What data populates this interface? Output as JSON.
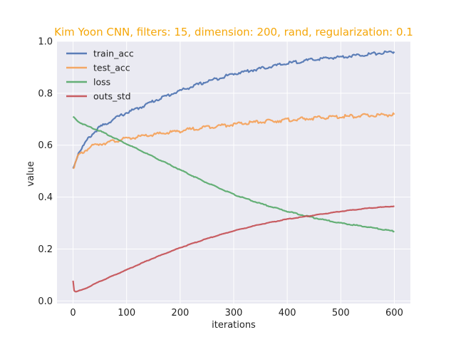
{
  "chart_data": {
    "type": "line",
    "title": "Kim Yoon CNN, filters: 15, dimension: 200, rand, regularization: 0.1",
    "title_color": "#F5A70A",
    "xlabel": "iterations",
    "ylabel": "value",
    "xlim": [
      -30,
      630
    ],
    "ylim": [
      -0.01,
      1.0
    ],
    "xticks": [
      0,
      100,
      200,
      300,
      400,
      500,
      600
    ],
    "yticks": [
      0.0,
      0.2,
      0.4,
      0.6,
      0.8,
      1.0
    ],
    "ytick_labels": [
      "0.0",
      "0.2",
      "0.4",
      "0.6",
      "0.8",
      "1.0"
    ],
    "grid": true,
    "background": "#EAEAF2",
    "legend_position": "top-left",
    "series": [
      {
        "name": "train_acc",
        "color": "#4C72B0",
        "x": [
          0,
          10,
          20,
          30,
          40,
          50,
          60,
          80,
          100,
          125,
          150,
          175,
          200,
          250,
          300,
          350,
          400,
          450,
          500,
          550,
          600
        ],
        "y": [
          0.51,
          0.57,
          0.6,
          0.63,
          0.65,
          0.67,
          0.68,
          0.705,
          0.725,
          0.745,
          0.77,
          0.79,
          0.81,
          0.845,
          0.875,
          0.895,
          0.915,
          0.93,
          0.94,
          0.95,
          0.96
        ]
      },
      {
        "name": "test_acc",
        "color": "#F5A055",
        "x": [
          0,
          10,
          20,
          30,
          40,
          50,
          75,
          100,
          150,
          200,
          250,
          300,
          350,
          400,
          450,
          500,
          550,
          600
        ],
        "y": [
          0.51,
          0.56,
          0.575,
          0.59,
          0.6,
          0.605,
          0.615,
          0.625,
          0.64,
          0.655,
          0.67,
          0.68,
          0.69,
          0.697,
          0.704,
          0.71,
          0.714,
          0.718
        ]
      },
      {
        "name": "loss",
        "color": "#55A868",
        "x": [
          0,
          10,
          25,
          50,
          75,
          100,
          150,
          200,
          250,
          300,
          350,
          400,
          450,
          500,
          550,
          600
        ],
        "y": [
          0.71,
          0.69,
          0.675,
          0.655,
          0.63,
          0.605,
          0.555,
          0.505,
          0.455,
          0.41,
          0.375,
          0.345,
          0.32,
          0.3,
          0.285,
          0.268
        ]
      },
      {
        "name": "outs_std",
        "color": "#C44E52",
        "x": [
          0,
          2,
          5,
          20,
          50,
          100,
          150,
          200,
          250,
          300,
          350,
          400,
          450,
          500,
          550,
          600
        ],
        "y": [
          0.078,
          0.04,
          0.035,
          0.045,
          0.075,
          0.12,
          0.165,
          0.205,
          0.24,
          0.27,
          0.295,
          0.315,
          0.33,
          0.345,
          0.357,
          0.365
        ]
      }
    ]
  }
}
